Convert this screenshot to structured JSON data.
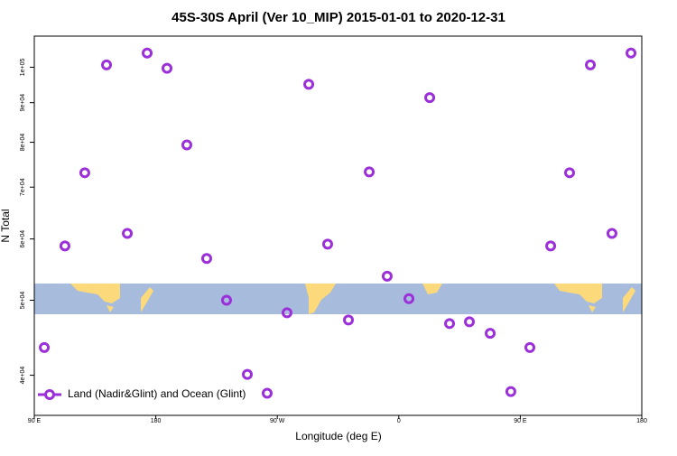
{
  "chart_data": {
    "type": "scatter",
    "title": "45S-30S April (Ver 10_MIP)   2015-01-01 to 2020-12-31",
    "x_label": "Longitude (deg E)",
    "y_label": "N Total",
    "ylog": true,
    "legend": "lower left",
    "xlim": [
      90,
      540
    ],
    "ylim": [
      35500,
      109700
    ],
    "xticks": [
      {
        "value": 90,
        "label": "90 E"
      },
      {
        "value": 180,
        "label": "180"
      },
      {
        "value": 270,
        "label": "90 W"
      },
      {
        "value": 360,
        "label": "0"
      },
      {
        "value": 450,
        "label": "90 E"
      },
      {
        "value": 540,
        "label": "180"
      }
    ],
    "yticks": [
      {
        "value": 40000,
        "label": "4e+04"
      },
      {
        "value": 50000,
        "label": "5e+04"
      },
      {
        "value": 60000,
        "label": "6e+04"
      },
      {
        "value": 70000,
        "label": "7e+04"
      },
      {
        "value": 80000,
        "label": "8e+04"
      },
      {
        "value": 90000,
        "label": "9e+04"
      },
      {
        "value": 100000,
        "label": "1e+05"
      }
    ],
    "series": [
      {
        "name": "Land (Nadir&Glint) and Ocean (Glint)",
        "color": "#9b30d9",
        "x": [
          97.4,
          112.7,
          127.4,
          143.5,
          158.9,
          173.6,
          188.3,
          203.0,
          217.7,
          232.4,
          247.8,
          262.5,
          277.2,
          293.3,
          307.3,
          322.7,
          338.1,
          351.4,
          367.5,
          382.9,
          397.6,
          412.3,
          427.7,
          443.0,
          457.1,
          472.5,
          486.5,
          501.9,
          517.9,
          532.0
        ],
        "values": [
          43440,
          58760,
          73060,
          100700,
          60990,
          104300,
          99700,
          79370,
          56620,
          50000,
          40100,
          37920,
          48170,
          95060,
          59080,
          47150,
          73250,
          53710,
          50230,
          91360,
          46650,
          46900,
          45310,
          38110,
          43440,
          58760,
          73060,
          100700,
          60990,
          104300
        ]
      }
    ]
  }
}
